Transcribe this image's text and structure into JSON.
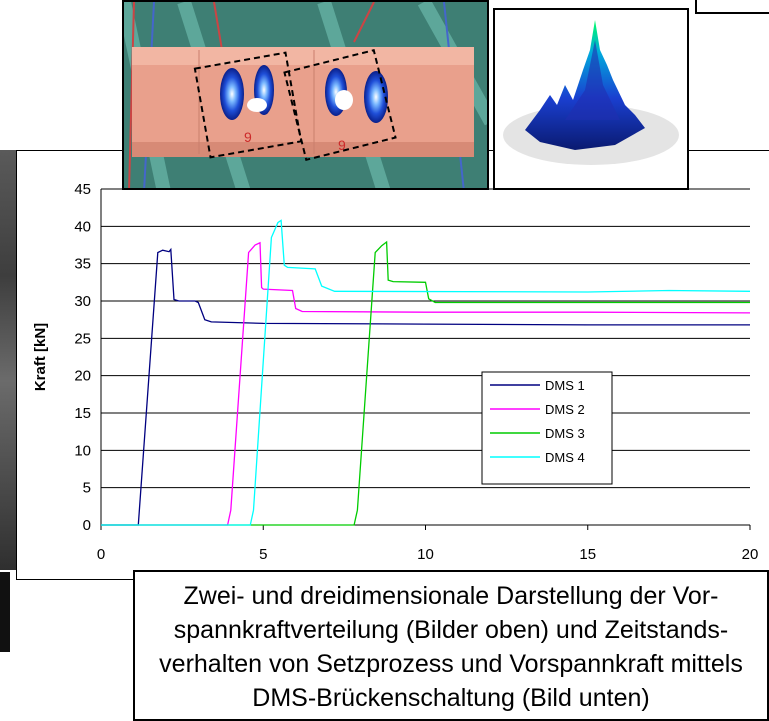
{
  "chart_data": {
    "type": "line",
    "title": "",
    "xlabel": "",
    "ylabel": "Kraft [kN]",
    "xlim": [
      0,
      20
    ],
    "ylim": [
      0,
      45
    ],
    "x_ticks": [
      "0",
      "5",
      "10",
      "15",
      "20"
    ],
    "y_ticks": [
      "0",
      "5",
      "10",
      "15",
      "20",
      "25",
      "30",
      "35",
      "40",
      "45"
    ],
    "grid": "horizontal",
    "legend_position": "lower-right",
    "series": [
      {
        "name": "DMS 1",
        "color": "#000080",
        "x": [
          0,
          1.15,
          1.75,
          1.9,
          2.1,
          2.15,
          2.25,
          2.4,
          2.9,
          3.0,
          3.2,
          3.4,
          5,
          10,
          15,
          20
        ],
        "y": [
          0,
          0,
          36.5,
          36.8,
          36.6,
          36.9,
          30.2,
          30.0,
          30.0,
          29.8,
          27.5,
          27.2,
          27.0,
          26.9,
          26.8,
          26.8
        ]
      },
      {
        "name": "DMS 2",
        "color": "#ff00ff",
        "x": [
          0,
          3.9,
          4.0,
          4.55,
          4.75,
          4.9,
          4.95,
          5.0,
          5.9,
          6.0,
          6.2,
          10,
          15,
          20
        ],
        "y": [
          0,
          0,
          2.0,
          36.5,
          37.5,
          37.8,
          31.8,
          31.6,
          31.4,
          29.0,
          28.6,
          28.5,
          28.5,
          28.4
        ]
      },
      {
        "name": "DMS 3",
        "color": "#00cc00",
        "x": [
          0,
          7.8,
          7.9,
          8.45,
          8.65,
          8.8,
          8.85,
          9.0,
          10.0,
          10.1,
          10.3,
          15,
          20
        ],
        "y": [
          0,
          0,
          2.0,
          36.5,
          37.4,
          37.9,
          32.8,
          32.6,
          32.5,
          30.3,
          29.8,
          29.8,
          29.8
        ]
      },
      {
        "name": "DMS 4",
        "color": "#00ffff",
        "x": [
          0,
          4.6,
          4.7,
          5.25,
          5.45,
          5.55,
          5.65,
          5.75,
          6.6,
          6.8,
          7.2,
          15,
          17.5,
          20
        ],
        "y": [
          0,
          0,
          2.0,
          38.5,
          40.5,
          40.8,
          34.8,
          34.5,
          34.3,
          32.0,
          31.3,
          31.2,
          31.4,
          31.3
        ]
      }
    ]
  },
  "caption": {
    "line1": "Zwei- und dreidimensionale Darstellung der Vor-",
    "line2": "spannkraftverteilung (Bilder oben) und Zeitstands-",
    "line3": "verhalten von Setzprozess und Vorspannkraft mittels",
    "line4": "DMS-Brückenschaltung (Bild unten)"
  },
  "photo": {
    "marks": [
      "9",
      "9"
    ]
  }
}
